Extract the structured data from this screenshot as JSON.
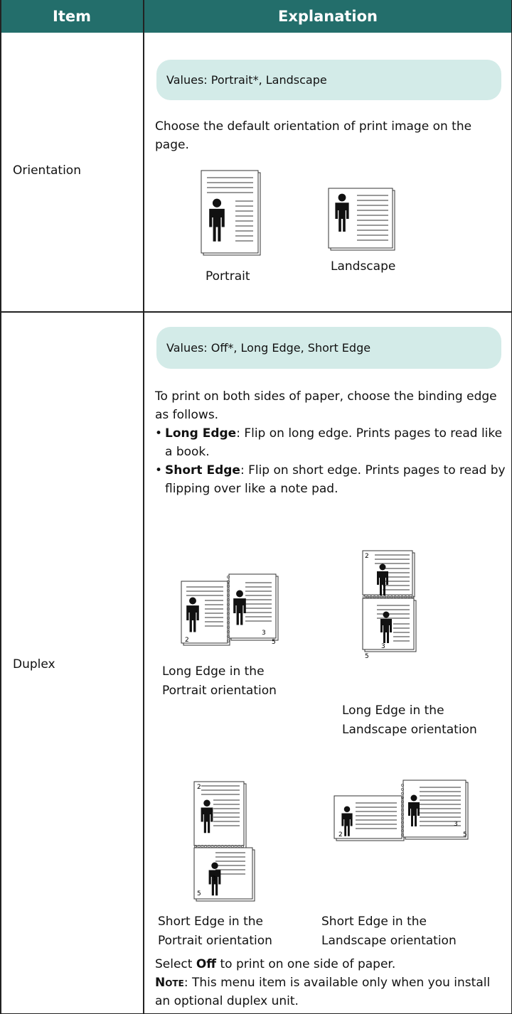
{
  "header": {
    "item": "Item",
    "explanation": "Explanation"
  },
  "rows": [
    {
      "item": "Orientation",
      "values": "Values: Portrait*, Landscape",
      "description": "Choose the default orientation of print image on the page.",
      "figures": [
        {
          "caption": [
            "Portrait"
          ]
        },
        {
          "caption": [
            "Landscape"
          ]
        }
      ]
    },
    {
      "item": "Duplex",
      "values": "Values: Off*, Long Edge, Short Edge",
      "description": "To print on both sides of paper, choose the binding edge as follows.",
      "bullets": [
        {
          "term": "Long Edge",
          "text": ": Flip on long edge. Prints pages to read like a book."
        },
        {
          "term": "Short Edge",
          "text": ": Flip on short edge. Prints pages to read by flipping over like a note pad."
        }
      ],
      "figures": [
        {
          "caption": [
            "Long Edge in the",
            "Portrait orientation"
          ],
          "page_numbers": [
            "2",
            "3",
            "5"
          ]
        },
        {
          "caption": [
            "Long Edge in the",
            "Landscape orientation"
          ],
          "page_numbers": [
            "2",
            "3",
            "5"
          ]
        },
        {
          "caption": [
            "Short Edge in the",
            "Portrait orientation"
          ],
          "page_numbers": [
            "2",
            "3",
            "5"
          ]
        },
        {
          "caption": [
            "Short Edge in the",
            "Landscape orientation"
          ],
          "page_numbers": [
            "2",
            "3",
            "5"
          ]
        }
      ],
      "footer": {
        "before": "Select ",
        "bold": "Off",
        "after": " to print on one side of paper.",
        "note_label": "Note",
        "note_text": ": This menu item is available only when you install an optional duplex unit."
      }
    }
  ]
}
